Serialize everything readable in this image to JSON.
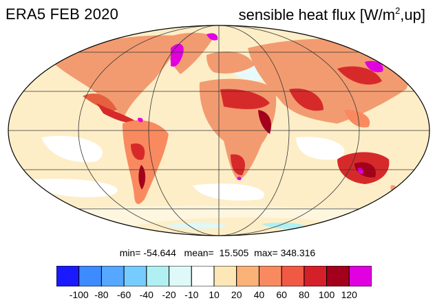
{
  "header": {
    "title_left": "ERA5 FEB 2020",
    "title_right_prefix": "sensible heat flux [W/m",
    "title_right_sup": "2",
    "title_right_suffix": ",up]"
  },
  "stats": {
    "text": "min= -54.644   mean=  15.505  max= 348.316"
  },
  "colorbar": {
    "colors": [
      "#1a1aff",
      "#3d8bff",
      "#55a7ff",
      "#77ccff",
      "#b0f0f2",
      "#dff8f8",
      "#ffffff",
      "#fde7b7",
      "#fbb278",
      "#f98a60",
      "#f05a45",
      "#d5202a",
      "#a3001c",
      "#e000e0"
    ],
    "labels": [
      "-100",
      "-80",
      "-60",
      "-40",
      "-20",
      "-10",
      "10",
      "20",
      "40",
      "60",
      "80",
      "100",
      "120"
    ]
  },
  "map": {
    "projection": "mollweide",
    "ocean_color": "#fdeec8",
    "land_warm_color": "#f39b70",
    "hot_color": "#d62a2a",
    "extreme_color": "#e000e0",
    "cold_color": "#d9f4f7"
  }
}
